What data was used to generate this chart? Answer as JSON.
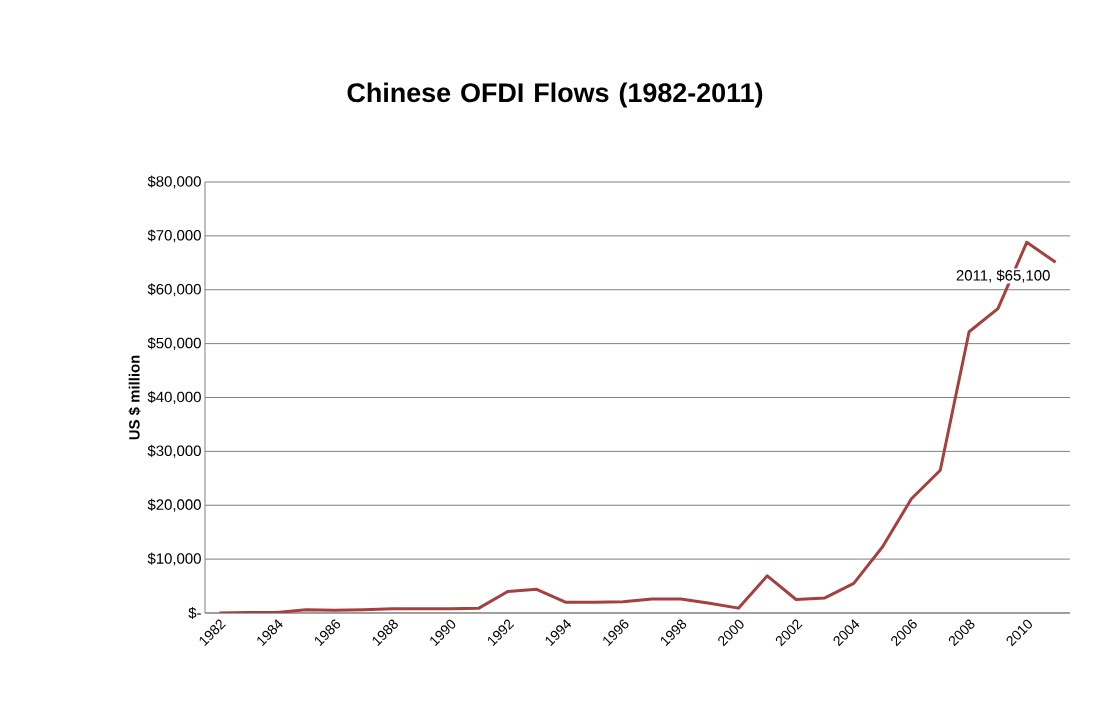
{
  "chart_data": {
    "type": "line",
    "title": "Chinese OFDI Flows (1982-2011)",
    "ylabel": "US $ million",
    "x": [
      1982,
      1983,
      1984,
      1985,
      1986,
      1987,
      1988,
      1989,
      1990,
      1991,
      1992,
      1993,
      1994,
      1995,
      1996,
      1997,
      1998,
      1999,
      2000,
      2001,
      2002,
      2003,
      2004,
      2005,
      2006,
      2007,
      2008,
      2009,
      2010,
      2011
    ],
    "series": [
      {
        "color": "#a5403f",
        "values": [
          0,
          100,
          100,
          600,
          500,
          600,
          800,
          800,
          800,
          900,
          4000,
          4400,
          2000,
          2000,
          2100,
          2600,
          2600,
          1800,
          900,
          6900,
          2500,
          2800,
          5500,
          12300,
          21200,
          26500,
          52200,
          56500,
          68800,
          65100
        ]
      }
    ],
    "xlim": [
      1981.5,
      2011.5
    ],
    "xticks": [
      1982,
      1984,
      1986,
      1988,
      1990,
      1992,
      1994,
      1996,
      1998,
      2000,
      2002,
      2004,
      2006,
      2008,
      2010
    ],
    "ylim": [
      0,
      80000
    ],
    "yticks": [
      {
        "value": 0,
        "label": "$-"
      },
      {
        "value": 10000,
        "label": "$10,000"
      },
      {
        "value": 20000,
        "label": "$20,000"
      },
      {
        "value": 30000,
        "label": "$30,000"
      },
      {
        "value": 40000,
        "label": "$40,000"
      },
      {
        "value": 50000,
        "label": "$50,000"
      },
      {
        "value": 60000,
        "label": "$60,000"
      },
      {
        "value": 70000,
        "label": "$70,000"
      },
      {
        "value": 80000,
        "label": "$80,000"
      }
    ],
    "grid": "y",
    "marker": "none",
    "line_style": "solid",
    "annotations": [
      {
        "text": "2011, $65,100",
        "x": 2011,
        "y": 65100
      }
    ]
  }
}
